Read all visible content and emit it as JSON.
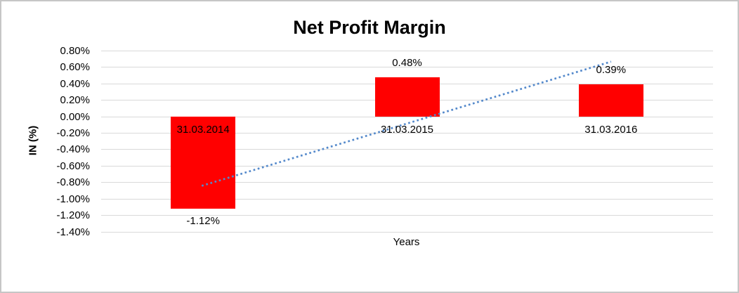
{
  "window": {
    "background": "#FFFFFF",
    "border_color": "#C6C6C6"
  },
  "chart_data": {
    "type": "bar",
    "title": "Net Profit Margin",
    "xlabel": "Years",
    "ylabel": "IN (%)",
    "categories": [
      "31.03.2014",
      "31.03.2015",
      "31.03.2016"
    ],
    "values": [
      -1.12,
      0.48,
      0.39
    ],
    "value_labels": [
      "-1.12%",
      "0.48%",
      "0.39%"
    ],
    "ylim": [
      -1.4,
      0.8
    ],
    "ytick_step": 0.2,
    "ytick_labels": [
      "0.80%",
      "0.60%",
      "0.40%",
      "0.20%",
      "0.00%",
      "-0.20%",
      "-0.40%",
      "-0.60%",
      "-0.80%",
      "-1.00%",
      "-1.20%",
      "-1.40%"
    ],
    "grid": true,
    "gridline_color": "#D9D9D9",
    "bar_color": "#FF0000",
    "text_color": "#000000",
    "legend": "none",
    "trendline": {
      "type": "linear",
      "style": "dotted",
      "color": "#5489CB",
      "start_value": -0.84,
      "end_value": 0.67
    }
  }
}
